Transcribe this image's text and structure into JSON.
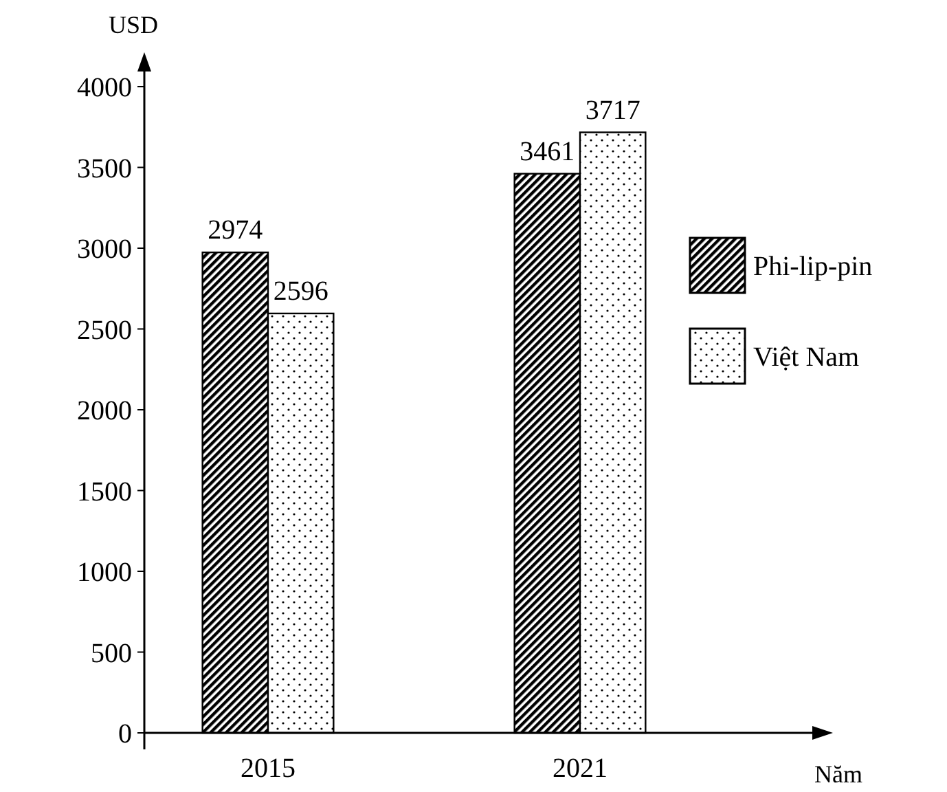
{
  "chart_data": {
    "type": "bar",
    "xlabel": "Năm",
    "ylabel": "USD",
    "categories": [
      "2015",
      "2021"
    ],
    "series": [
      {
        "name": "Phi-lip-pin",
        "color": "#000000",
        "values": [
          2974,
          3461
        ]
      },
      {
        "name": "Việt Nam",
        "color": "#000000",
        "values": [
          2596,
          3717
        ]
      }
    ],
    "ylim": [
      0,
      4000
    ],
    "yticks": [
      0,
      500,
      1000,
      1500,
      2000,
      2500,
      3000,
      3500,
      4000
    ],
    "grid": false,
    "legend": "right",
    "data_labels": true
  }
}
